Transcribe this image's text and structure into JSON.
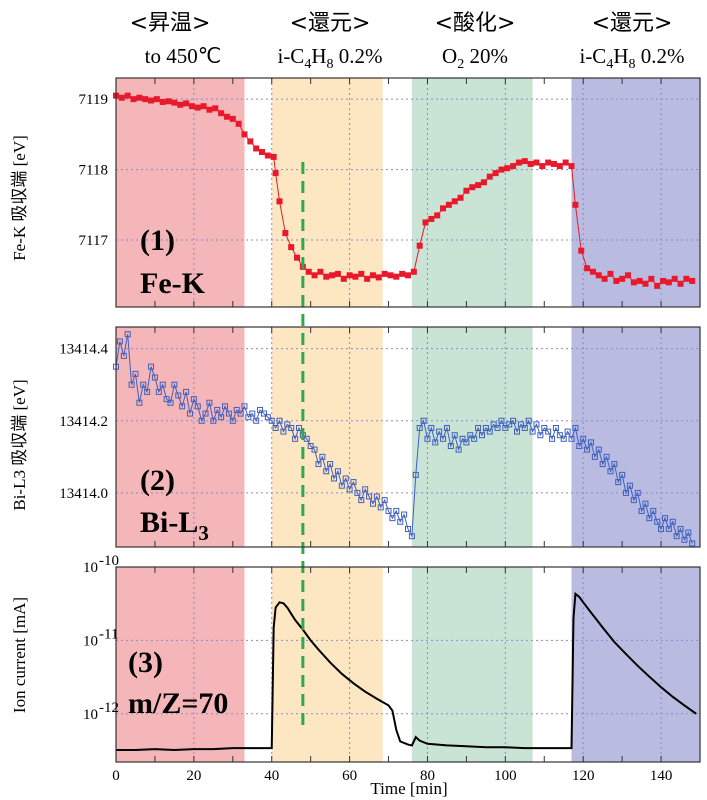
{
  "phases": [
    {
      "title": "<昇温>",
      "condition": "to 450℃",
      "x0": 0,
      "x1": 33,
      "color": "#f4b6b8"
    },
    {
      "title": "<還元>",
      "condition": "i-C4H8 0.2%",
      "x0": 40,
      "x1": 68.5,
      "color": "#fde6c2"
    },
    {
      "title": "<酸化>",
      "condition": "O2 20%",
      "x0": 76,
      "x1": 107,
      "color": "#c9e3d4"
    },
    {
      "title": "<還元>",
      "condition": "i-C4H8 0.2%",
      "x0": 117,
      "x1": 150,
      "color": "#b9bce0"
    }
  ],
  "marker_line": {
    "x": 48,
    "color": "#2eaa4a"
  },
  "chart_data": [
    {
      "type": "line",
      "panel_label": "(1)",
      "panel_name": "Fe-K",
      "ylabel": "Fe-K 吸収端 [eV]",
      "xlim": [
        0,
        150
      ],
      "ylim": [
        7116.05,
        7119.3
      ],
      "yticks": [
        7117,
        7118,
        7119
      ],
      "series": [
        {
          "name": "Fe-K",
          "color": "#e8192c",
          "marker": "square-filled",
          "x": [
            0,
            1.5,
            3,
            4.5,
            6,
            7.5,
            9,
            10.5,
            12,
            13.5,
            15,
            16.5,
            18,
            19.5,
            21,
            22.5,
            24,
            25.5,
            27,
            28.5,
            30,
            31.5,
            33,
            34.5,
            36,
            37.5,
            39,
            40.5,
            41,
            42,
            43.5,
            45,
            46.5,
            48,
            49.5,
            51,
            52.5,
            54,
            55.5,
            57,
            58.5,
            60,
            61.5,
            63,
            64.5,
            66,
            67.5,
            69,
            70.5,
            72,
            73.5,
            75,
            76.5,
            78,
            79.5,
            81,
            82.5,
            84,
            85.5,
            87,
            88.5,
            90,
            91.5,
            93,
            94.5,
            96,
            97.5,
            99,
            100.5,
            102,
            103.5,
            105,
            106.5,
            108,
            109.5,
            111,
            112.5,
            114,
            115.5,
            117,
            118,
            119.5,
            121,
            122.5,
            124,
            125.5,
            127,
            128.5,
            130,
            131.5,
            133,
            134.5,
            136,
            137.5,
            139,
            140.5,
            142,
            143.5,
            145,
            146.5,
            148
          ],
          "y": [
            7119.05,
            7119.02,
            7119.05,
            7119.0,
            7119.02,
            7119.0,
            7118.98,
            7119.0,
            7118.96,
            7118.97,
            7118.95,
            7118.92,
            7118.94,
            7118.9,
            7118.88,
            7118.9,
            7118.85,
            7118.87,
            7118.8,
            7118.75,
            7118.72,
            7118.65,
            7118.5,
            7118.4,
            7118.3,
            7118.25,
            7118.2,
            7118.18,
            7117.95,
            7117.55,
            7117.1,
            7116.9,
            7116.75,
            7116.62,
            7116.55,
            7116.5,
            7116.55,
            7116.48,
            7116.5,
            7116.52,
            7116.45,
            7116.5,
            7116.48,
            7116.52,
            7116.45,
            7116.5,
            7116.47,
            7116.52,
            7116.5,
            7116.48,
            7116.52,
            7116.5,
            7116.55,
            7116.92,
            7117.25,
            7117.3,
            7117.35,
            7117.45,
            7117.5,
            7117.55,
            7117.6,
            7117.7,
            7117.75,
            7117.78,
            7117.82,
            7117.9,
            7117.95,
            7118.0,
            7118.02,
            7118.05,
            7118.1,
            7118.12,
            7118.08,
            7118.1,
            7118.05,
            7118.1,
            7118.08,
            7118.05,
            7118.1,
            7118.05,
            7117.5,
            7116.85,
            7116.6,
            7116.55,
            7116.5,
            7116.45,
            7116.52,
            7116.42,
            7116.45,
            7116.5,
            7116.4,
            7116.42,
            7116.38,
            7116.45,
            7116.35,
            7116.42,
            7116.4,
            7116.45,
            7116.38,
            7116.45,
            7116.42
          ]
        }
      ]
    },
    {
      "type": "line",
      "panel_label": "(2)",
      "panel_name": "Bi-L3",
      "ylabel": "Bi-L3 吸収端 [eV]",
      "xlim": [
        0,
        150
      ],
      "ylim": [
        13413.85,
        13414.46
      ],
      "yticks": [
        13414.0,
        13414.2,
        13414.4
      ],
      "series": [
        {
          "name": "Bi-L3",
          "color": "#3f5fbf",
          "marker": "square-open",
          "x": [
            0,
            1,
            2,
            3,
            4,
            5,
            6,
            7,
            8,
            9,
            10,
            11,
            12,
            13,
            14,
            15,
            16,
            17,
            18,
            19,
            20,
            21,
            22,
            23,
            24,
            25,
            26,
            27,
            28,
            29,
            30,
            31,
            32,
            33,
            34,
            35,
            36,
            37,
            38,
            39,
            40,
            41,
            42,
            43,
            44,
            45,
            46,
            47,
            48,
            49,
            50,
            51,
            52,
            53,
            54,
            55,
            56,
            57,
            58,
            59,
            60,
            61,
            62,
            63,
            64,
            65,
            66,
            67,
            68,
            69,
            70,
            71,
            72,
            73,
            74,
            75,
            76,
            77,
            78,
            79,
            80,
            81,
            82,
            83,
            84,
            85,
            86,
            87,
            88,
            89,
            90,
            91,
            92,
            93,
            94,
            95,
            96,
            97,
            98,
            99,
            100,
            101,
            102,
            103,
            104,
            105,
            106,
            107,
            108,
            109,
            110,
            111,
            112,
            113,
            114,
            115,
            116,
            117,
            118,
            119,
            120,
            121,
            122,
            123,
            124,
            125,
            126,
            127,
            128,
            129,
            130,
            131,
            132,
            133,
            134,
            135,
            136,
            137,
            138,
            139,
            140,
            141,
            142,
            143,
            144,
            145,
            146,
            147,
            148
          ],
          "y": [
            13414.35,
            13414.42,
            13414.38,
            13414.44,
            13414.3,
            13414.33,
            13414.25,
            13414.3,
            13414.28,
            13414.35,
            13414.32,
            13414.28,
            13414.3,
            13414.26,
            13414.25,
            13414.3,
            13414.27,
            13414.24,
            13414.28,
            13414.22,
            13414.26,
            13414.24,
            13414.2,
            13414.22,
            13414.25,
            13414.2,
            13414.23,
            13414.21,
            13414.24,
            13414.22,
            13414.2,
            13414.23,
            13414.22,
            13414.24,
            13414.21,
            13414.22,
            13414.2,
            13414.23,
            13414.22,
            13414.21,
            13414.2,
            13414.18,
            13414.2,
            13414.17,
            13414.19,
            13414.18,
            13414.15,
            13414.18,
            13414.16,
            13414.15,
            13414.13,
            13414.12,
            13414.08,
            13414.1,
            13414.06,
            13414.08,
            13414.04,
            13414.06,
            13414.02,
            13414.04,
            13414.01,
            13414.03,
            13414.0,
            13413.98,
            13414.01,
            13413.99,
            13413.97,
            13413.99,
            13413.96,
            13413.98,
            13413.95,
            13413.93,
            13413.95,
            13413.92,
            13413.94,
            13413.9,
            13413.88,
            13414.05,
            13414.18,
            13414.2,
            13414.15,
            13414.18,
            13414.14,
            13414.17,
            13414.15,
            13414.18,
            13414.13,
            13414.16,
            13414.12,
            13414.15,
            13414.14,
            13414.16,
            13414.15,
            13414.18,
            13414.16,
            13414.18,
            13414.17,
            13414.19,
            13414.18,
            13414.2,
            13414.18,
            13414.19,
            13414.2,
            13414.17,
            13414.19,
            13414.18,
            13414.2,
            13414.17,
            13414.19,
            13414.16,
            13414.18,
            13414.17,
            13414.15,
            13414.18,
            13414.16,
            13414.15,
            13414.17,
            13414.15,
            13414.18,
            13414.13,
            13414.15,
            13414.12,
            13414.14,
            13414.1,
            13414.12,
            13414.08,
            13414.1,
            13414.06,
            13414.08,
            13414.03,
            13414.05,
            13414.0,
            13414.02,
            13413.98,
            13414.0,
            13413.95,
            13413.97,
            13413.93,
            13413.95,
            13413.92,
            13413.9,
            13413.93,
            13413.9,
            13413.92,
            13413.88,
            13413.9,
            13413.87,
            13413.89,
            13413.86
          ]
        }
      ]
    },
    {
      "type": "line",
      "panel_label": "(3)",
      "panel_name": "m/Z=70",
      "ylabel": "Ion current [mA]",
      "xlabel": "Time [min]",
      "xlim": [
        0,
        150
      ],
      "xticks": [
        0,
        20,
        40,
        60,
        80,
        100,
        120,
        140
      ],
      "yscale": "log",
      "ylim": [
        2.2e-13,
        1e-10
      ],
      "yticks": [
        "10^-10",
        "10^-11",
        "10^-12"
      ],
      "series": [
        {
          "name": "m/Z=70",
          "color": "#000000",
          "marker": "none",
          "x": [
            0,
            5,
            10,
            15,
            20,
            25,
            30,
            35,
            40,
            40.5,
            41,
            42,
            43,
            44,
            45,
            46,
            48,
            50,
            52,
            55,
            58,
            61,
            64,
            67,
            70,
            71,
            72,
            73,
            75,
            76,
            77,
            78,
            80,
            85,
            90,
            95,
            100,
            105,
            110,
            115,
            117,
            117.5,
            118,
            119,
            120,
            122,
            125,
            128,
            131,
            134,
            137,
            140,
            143,
            146,
            149
          ],
          "y": [
            3.2e-13,
            3.2e-13,
            3.3e-13,
            3.2e-13,
            3.3e-13,
            3.3e-13,
            3.4e-13,
            3.4e-13,
            3.4e-13,
            1.5e-11,
            2.8e-11,
            3.3e-11,
            3.2e-11,
            2.8e-11,
            2.3e-11,
            1.9e-11,
            1.4e-11,
            1e-11,
            7.5e-12,
            5e-12,
            3.5e-12,
            2.6e-12,
            2e-12,
            1.6e-12,
            1.3e-12,
            1.1e-12,
            6e-13,
            4.2e-13,
            3.8e-13,
            3.7e-13,
            4.8e-13,
            4.3e-13,
            3.9e-13,
            3.7e-13,
            3.6e-13,
            3.5e-13,
            3.5e-13,
            3.4e-13,
            3.4e-13,
            3.4e-13,
            3.4e-13,
            2e-11,
            4.3e-11,
            3.9e-11,
            3.3e-11,
            2.4e-11,
            1.5e-11,
            9.5e-12,
            6.5e-12,
            4.5e-12,
            3.2e-12,
            2.3e-12,
            1.7e-12,
            1.3e-12,
            1e-12
          ]
        }
      ]
    }
  ]
}
